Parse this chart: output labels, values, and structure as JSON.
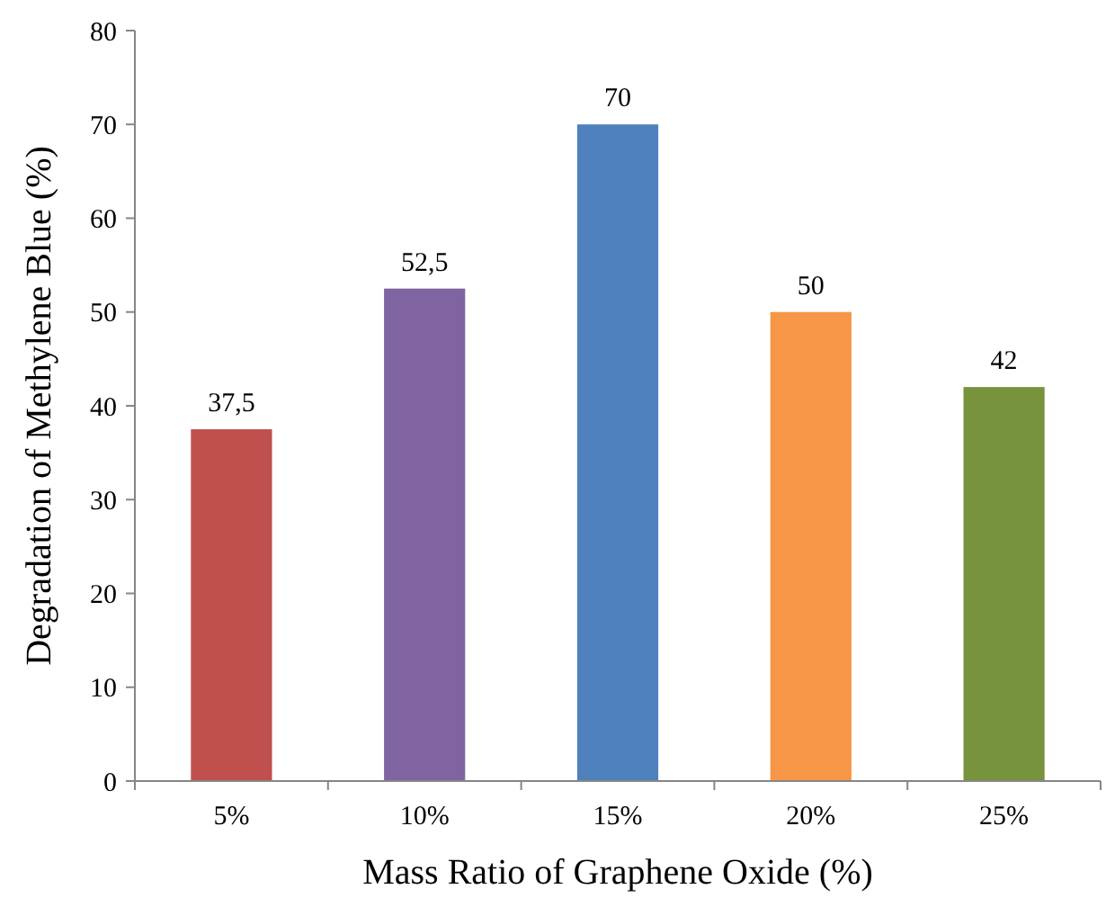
{
  "chart_data": {
    "type": "bar",
    "xlabel": "Mass Ratio of Graphene Oxide (%)",
    "ylabel": "Degradation of Methylene Blue (%)",
    "categories": [
      "5%",
      "10%",
      "15%",
      "20%",
      "25%"
    ],
    "values": [
      37.5,
      52.5,
      70,
      50,
      42
    ],
    "colors": [
      "#c0504d",
      "#8064a2",
      "#4f81bd",
      "#f79646",
      "#77933c"
    ],
    "value_labels": [
      "37,5",
      "52,5",
      "70",
      "50",
      "42"
    ],
    "ylim": [
      0,
      80
    ],
    "yticks": [
      0,
      10,
      20,
      30,
      40,
      50,
      60,
      70,
      80
    ],
    "grid": false
  }
}
